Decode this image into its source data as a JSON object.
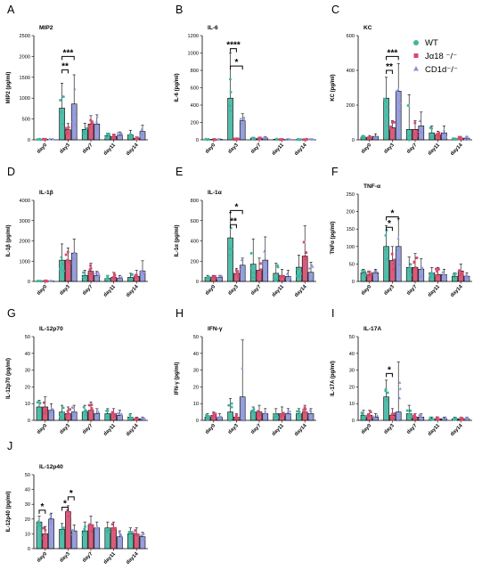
{
  "colors": {
    "WT": "#3fb5a0",
    "Ja18": "#d64a6e",
    "CD1d": "#8c93d8"
  },
  "legend": [
    {
      "key": "WT",
      "label": "WT",
      "marker": "circle"
    },
    {
      "key": "Ja18",
      "label": "Jα18 ⁻/⁻",
      "marker": "square"
    },
    {
      "key": "CD1d",
      "label": "CD1d⁻/⁻",
      "marker": "triangle"
    }
  ],
  "chart_data": [
    {
      "letter": "A",
      "title": "MIP2",
      "type": "bar",
      "ylabel": "MIP2 (pg/ml)",
      "ylim": [
        0,
        2500
      ],
      "yticks": [
        0,
        500,
        1000,
        1500,
        2000,
        2500
      ],
      "categories": [
        "day0",
        "day3",
        "day7",
        "day11",
        "day14"
      ],
      "series": [
        {
          "name": "WT",
          "values": [
            10,
            760,
            250,
            100,
            120
          ],
          "err": [
            8,
            600,
            150,
            60,
            110
          ]
        },
        {
          "name": "Jα18 ⁻/⁻",
          "values": [
            10,
            240,
            380,
            80,
            40
          ],
          "err": [
            8,
            150,
            200,
            60,
            30
          ]
        },
        {
          "name": "CD1d⁻/⁻",
          "values": [
            10,
            860,
            380,
            110,
            200
          ],
          "err": [
            8,
            700,
            220,
            80,
            150
          ]
        }
      ],
      "sig": [
        {
          "from": [
            1,
            0
          ],
          "to": [
            1,
            1
          ],
          "label": "**",
          "y": 1680
        },
        {
          "from": [
            1,
            0
          ],
          "to": [
            1,
            2
          ],
          "label": "***",
          "y": 2000
        }
      ]
    },
    {
      "letter": "B",
      "title": "IL-6",
      "type": "bar",
      "ylabel": "IL-6 (pg/ml)",
      "ylim": [
        0,
        1200
      ],
      "yticks": [
        0,
        200,
        400,
        600,
        800,
        1000,
        1200
      ],
      "categories": [
        "day0",
        "day3",
        "day7",
        "day11",
        "day14"
      ],
      "series": [
        {
          "name": "WT",
          "values": [
            5,
            480,
            20,
            5,
            5
          ],
          "err": [
            5,
            520,
            10,
            5,
            5
          ]
        },
        {
          "name": "Jα18 ⁻/⁻",
          "values": [
            5,
            10,
            15,
            5,
            5
          ],
          "err": [
            5,
            10,
            10,
            5,
            5
          ]
        },
        {
          "name": "CD1d⁻/⁻",
          "values": [
            5,
            220,
            20,
            5,
            5
          ],
          "err": [
            5,
            80,
            15,
            5,
            5
          ]
        }
      ],
      "sig": [
        {
          "from": [
            1,
            0
          ],
          "to": [
            1,
            1
          ],
          "label": "****",
          "y": 1050
        },
        {
          "from": [
            1,
            0
          ],
          "to": [
            1,
            2
          ],
          "label": "*",
          "y": 850
        }
      ]
    },
    {
      "letter": "C",
      "title": "KC",
      "type": "bar",
      "ylabel": "KC (pg/ml)",
      "ylim": [
        0,
        600
      ],
      "yticks": [
        0,
        200,
        400,
        600
      ],
      "categories": [
        "day0",
        "day3",
        "day7",
        "day11",
        "day14"
      ],
      "series": [
        {
          "name": "WT",
          "values": [
            15,
            240,
            60,
            40,
            5
          ],
          "err": [
            10,
            120,
            200,
            40,
            5
          ]
        },
        {
          "name": "Jα18 ⁻/⁻",
          "values": [
            15,
            70,
            60,
            30,
            10
          ],
          "err": [
            10,
            40,
            50,
            20,
            10
          ]
        },
        {
          "name": "CD1d⁻/⁻",
          "values": [
            20,
            280,
            80,
            40,
            10
          ],
          "err": [
            15,
            160,
            80,
            40,
            10
          ]
        }
      ],
      "sig": [
        {
          "from": [
            1,
            0
          ],
          "to": [
            1,
            1
          ],
          "label": "**",
          "y": 400
        },
        {
          "from": [
            1,
            0
          ],
          "to": [
            1,
            2
          ],
          "label": "***",
          "y": 480
        }
      ]
    },
    {
      "letter": "D",
      "title": "IL-1β",
      "type": "bar",
      "ylabel": "IL-1β (pg/ml)",
      "ylim": [
        0,
        4000
      ],
      "yticks": [
        0,
        1000,
        2000,
        3000,
        4000
      ],
      "categories": [
        "day0",
        "day3",
        "day7",
        "day11",
        "day14"
      ],
      "series": [
        {
          "name": "WT",
          "values": [
            20,
            1050,
            300,
            150,
            200
          ],
          "err": [
            20,
            800,
            250,
            150,
            200
          ]
        },
        {
          "name": "Jα18 ⁻/⁻",
          "values": [
            20,
            1050,
            500,
            200,
            250
          ],
          "err": [
            20,
            600,
            400,
            250,
            300
          ]
        },
        {
          "name": "CD1d⁻/⁻",
          "values": [
            20,
            1400,
            300,
            150,
            520
          ],
          "err": [
            20,
            700,
            200,
            150,
            500
          ]
        }
      ],
      "sig": []
    },
    {
      "letter": "E",
      "title": "IL-1α",
      "type": "bar",
      "ylabel": "IL-1α (pg/ml)",
      "ylim": [
        0,
        800
      ],
      "yticks": [
        0,
        200,
        400,
        600,
        800
      ],
      "categories": [
        "day0",
        "day3",
        "day7",
        "day11",
        "day14"
      ],
      "series": [
        {
          "name": "WT",
          "values": [
            40,
            430,
            170,
            80,
            140
          ],
          "err": [
            20,
            250,
            250,
            100,
            120
          ]
        },
        {
          "name": "Jα18 ⁻/⁻",
          "values": [
            40,
            80,
            110,
            60,
            250
          ],
          "err": [
            20,
            50,
            120,
            60,
            300
          ]
        },
        {
          "name": "CD1d⁻/⁻",
          "values": [
            40,
            160,
            210,
            50,
            90
          ],
          "err": [
            20,
            70,
            230,
            60,
            100
          ]
        }
      ],
      "sig": [
        {
          "from": [
            1,
            0
          ],
          "to": [
            1,
            1
          ],
          "label": "**",
          "y": 560
        },
        {
          "from": [
            1,
            0
          ],
          "to": [
            1,
            2
          ],
          "label": "*",
          "y": 700
        }
      ]
    },
    {
      "letter": "F",
      "title": "TNF-α",
      "type": "bar",
      "ylabel": "TNFα (pg/ml)",
      "ylim": [
        0,
        250
      ],
      "yticks": [
        0,
        50,
        100,
        150,
        200,
        250
      ],
      "categories": [
        "day0",
        "day3",
        "day7",
        "day11",
        "day14"
      ],
      "series": [
        {
          "name": "WT",
          "values": [
            25,
            100,
            40,
            25,
            15
          ],
          "err": [
            10,
            60,
            30,
            15,
            10
          ]
        },
        {
          "name": "Jα18 ⁻/⁻",
          "values": [
            20,
            60,
            40,
            20,
            30
          ],
          "err": [
            10,
            40,
            40,
            20,
            20
          ]
        },
        {
          "name": "CD1d⁻/⁻",
          "values": [
            25,
            100,
            35,
            20,
            15
          ],
          "err": [
            10,
            80,
            30,
            15,
            10
          ]
        }
      ],
      "sig": [
        {
          "from": [
            1,
            0
          ],
          "to": [
            1,
            1
          ],
          "label": "*",
          "y": 155
        },
        {
          "from": [
            1,
            0
          ],
          "to": [
            1,
            2
          ],
          "label": "*",
          "y": 185
        }
      ]
    },
    {
      "letter": "G",
      "title": "IL-12p70",
      "type": "bar",
      "ylabel": "IL-12p70 (pg/ml)",
      "ylim": [
        0,
        50
      ],
      "yticks": [
        0,
        10,
        20,
        30,
        40,
        50
      ],
      "categories": [
        "day0",
        "day3",
        "day7",
        "day11",
        "day14"
      ],
      "series": [
        {
          "name": "WT",
          "values": [
            8,
            5,
            5,
            4,
            2
          ],
          "err": [
            4,
            4,
            4,
            3,
            2
          ]
        },
        {
          "name": "Jα18 ⁻/⁻",
          "values": [
            8,
            4,
            6,
            4,
            1
          ],
          "err": [
            6,
            4,
            5,
            3,
            1
          ]
        },
        {
          "name": "CD1d⁻/⁻",
          "values": [
            6,
            5,
            4,
            3,
            1
          ],
          "err": [
            4,
            4,
            3,
            3,
            1
          ]
        }
      ],
      "sig": []
    },
    {
      "letter": "H",
      "title": "IFN-γ",
      "type": "bar",
      "ylabel": "IFN-γ (pg/ml)",
      "ylim": [
        0,
        50
      ],
      "yticks": [
        0,
        10,
        20,
        30,
        40,
        50
      ],
      "categories": [
        "day0",
        "day3",
        "day7",
        "day11",
        "day14"
      ],
      "series": [
        {
          "name": "WT",
          "values": [
            2,
            5,
            5,
            4,
            4
          ],
          "err": [
            2,
            8,
            3,
            3,
            3
          ]
        },
        {
          "name": "Jα18 ⁻/⁻",
          "values": [
            3,
            2,
            5,
            4,
            5
          ],
          "err": [
            2,
            2,
            4,
            4,
            4
          ]
        },
        {
          "name": "CD1d⁻/⁻",
          "values": [
            2,
            14,
            4,
            4,
            4
          ],
          "err": [
            2,
            34,
            3,
            3,
            3
          ]
        }
      ],
      "sig": []
    },
    {
      "letter": "I",
      "title": "IL-17A",
      "type": "bar",
      "ylabel": "IL-17A (pg/ml)",
      "ylim": [
        0,
        50
      ],
      "yticks": [
        0,
        10,
        20,
        30,
        40,
        50
      ],
      "categories": [
        "day0",
        "day3",
        "day7",
        "day11",
        "day14"
      ],
      "series": [
        {
          "name": "WT",
          "values": [
            3,
            14,
            4,
            1,
            1
          ],
          "err": [
            3,
            10,
            5,
            1,
            1
          ]
        },
        {
          "name": "Jα18 ⁻/⁻",
          "values": [
            3,
            3,
            2,
            1,
            1
          ],
          "err": [
            3,
            4,
            2,
            1,
            1
          ]
        },
        {
          "name": "CD1d⁻/⁻",
          "values": [
            2,
            5,
            2,
            1,
            1
          ],
          "err": [
            2,
            30,
            2,
            1,
            1
          ]
        }
      ],
      "sig": [
        {
          "from": [
            1,
            0
          ],
          "to": [
            1,
            1
          ],
          "label": "*",
          "y": 28
        }
      ]
    },
    {
      "letter": "J",
      "title": "IL-12p40",
      "type": "bar",
      "ylabel": "IL-12p40 (pg/ml)",
      "ylim": [
        0,
        50
      ],
      "yticks": [
        0,
        10,
        20,
        30,
        40,
        50
      ],
      "categories": [
        "day0",
        "day3",
        "day7",
        "day11",
        "day14"
      ],
      "series": [
        {
          "name": "WT",
          "values": [
            18,
            13,
            12,
            14,
            10
          ],
          "err": [
            4,
            4,
            6,
            4,
            4
          ]
        },
        {
          "name": "Jα18 ⁻/⁻",
          "values": [
            10,
            25,
            16,
            14,
            10
          ],
          "err": [
            5,
            4,
            6,
            4,
            4
          ]
        },
        {
          "name": "CD1d⁻/⁻",
          "values": [
            20,
            12,
            14,
            8,
            8
          ],
          "err": [
            4,
            4,
            4,
            4,
            3
          ]
        }
      ],
      "sig": [
        {
          "from": [
            0,
            0
          ],
          "to": [
            0,
            1
          ],
          "label": "*",
          "y": 26
        },
        {
          "from": [
            1,
            0
          ],
          "to": [
            1,
            1
          ],
          "label": "*",
          "y": 28
        },
        {
          "from": [
            1,
            1
          ],
          "to": [
            1,
            2
          ],
          "label": "*",
          "y": 35
        }
      ]
    }
  ]
}
